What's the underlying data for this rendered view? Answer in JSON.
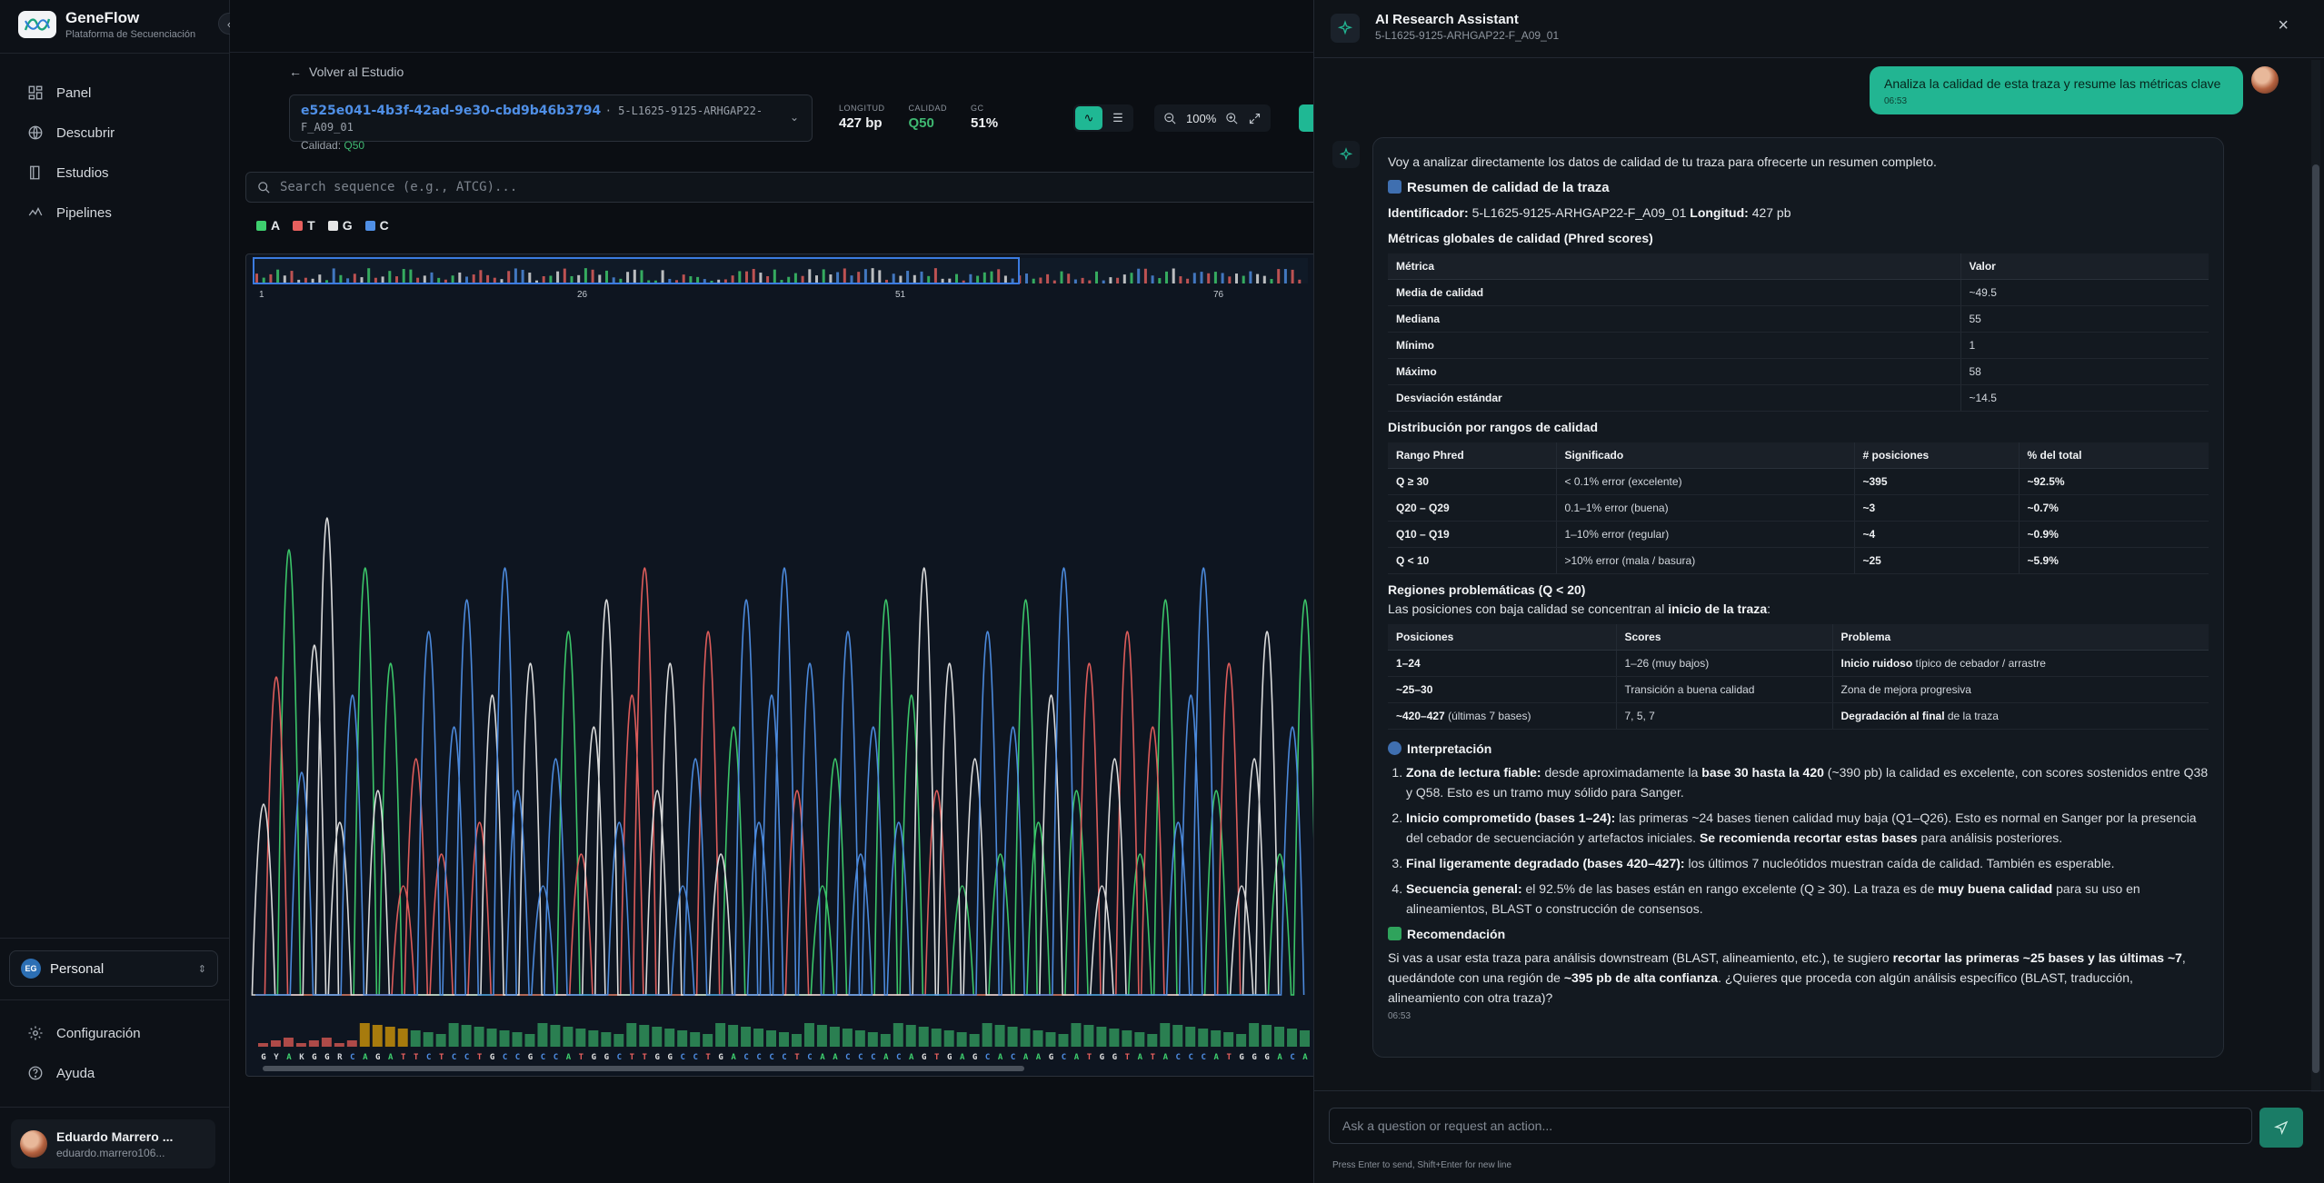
{
  "sidebar": {
    "brand_name": "GeneFlow",
    "brand_sub": "Plataforma de Secuenciación",
    "nav": [
      {
        "label": "Panel",
        "icon": "layout-icon"
      },
      {
        "label": "Descubrir",
        "icon": "globe-icon"
      },
      {
        "label": "Estudios",
        "icon": "book-icon"
      },
      {
        "label": "Pipelines",
        "icon": "activity-icon"
      }
    ],
    "workspace_badge": "EG",
    "workspace": "Personal",
    "bottom_nav": [
      {
        "label": "Configuración",
        "icon": "gear-icon"
      },
      {
        "label": "Ayuda",
        "icon": "help-icon"
      }
    ],
    "user_name": "Eduardo Marrero ...",
    "user_email": "eduardo.marrero106..."
  },
  "main": {
    "back_label": "Volver al Estudio",
    "trace_id": "e525e041-4b3f-42ad-9e30-cbd9b46b3794",
    "trace_name": "· 5-L1625-9125-ARHGAP22-F_A09_01",
    "quality_label": "Calidad:",
    "quality_value": "Q50",
    "stats": [
      {
        "label": "LONGITUD",
        "value": "427 bp"
      },
      {
        "label": "CALIDAD",
        "value": "Q50"
      },
      {
        "label": "GC",
        "value": "51%"
      }
    ],
    "zoom_level": "100%",
    "search_placeholder": "Search sequence (e.g., ATCG)...",
    "legend": [
      {
        "base": "A",
        "color": "#3ecf6e"
      },
      {
        "base": "T",
        "color": "#e8605e"
      },
      {
        "base": "G",
        "color": "#e6e6e6"
      },
      {
        "base": "C",
        "color": "#4f8fe6"
      }
    ],
    "overview_ticks": [
      "1",
      "26",
      "51",
      "76"
    ],
    "sequence": "GYAKGGRCAGATTCTCCTGCCGCCATGGCTTGGCCTGACCCCTCAACCCACAGTGAGCACAAGCATGGTATACCCATGGGACA"
  },
  "assistant": {
    "title": "AI Research Assistant",
    "subtitle": "5-L1625-9125-ARHGAP22-F_A09_01",
    "user_message": "Analiza la calidad de esta traza y resume las métricas clave",
    "user_time": "06:53",
    "intro": "Voy a analizar directamente los datos de calidad de tu traza para ofrecerte un resumen completo.",
    "summary_title": "Resumen de calidad de la traza",
    "id_label": "Identificador:",
    "id_value": "5-L1625-9125-ARHGAP22-F_A09_01",
    "len_label": "Longitud:",
    "len_value": "427 pb",
    "metrics_title": "Métricas globales de calidad (Phred scores)",
    "metrics_headers": [
      "Métrica",
      "Valor"
    ],
    "metrics_rows": [
      [
        "Media de calidad",
        "~49.5"
      ],
      [
        "Mediana",
        "55"
      ],
      [
        "Mínimo",
        "1"
      ],
      [
        "Máximo",
        "58"
      ],
      [
        "Desviación estándar",
        "~14.5"
      ]
    ],
    "dist_title": "Distribución por rangos de calidad",
    "dist_headers": [
      "Rango Phred",
      "Significado",
      "# posiciones",
      "% del total"
    ],
    "dist_rows": [
      [
        "Q ≥ 30",
        "< 0.1% error (excelente)",
        "~395",
        "~92.5%"
      ],
      [
        "Q20 – Q29",
        "0.1–1% error (buena)",
        "~3",
        "~0.7%"
      ],
      [
        "Q10 – Q19",
        "1–10% error (regular)",
        "~4",
        "~0.9%"
      ],
      [
        "Q < 10",
        ">10% error (mala / basura)",
        "~25",
        "~5.9%"
      ]
    ],
    "regions_title": "Regiones problemáticas (Q < 20)",
    "regions_intro_a": "Las posiciones con baja calidad se concentran al",
    "regions_intro_b": "inicio de la traza",
    "regions_intro_c": ":",
    "regions_headers": [
      "Posiciones",
      "Scores",
      "Problema"
    ],
    "regions_rows": [
      {
        "pos": "1–24",
        "pos_note": "",
        "scores": "1–26 (muy bajos)",
        "prob_b": "Inicio ruidoso",
        "prob": " típico de cebador / arrastre"
      },
      {
        "pos": "~25–30",
        "pos_note": "",
        "scores": "Transición a buena calidad",
        "prob_b": "",
        "prob": "Zona de mejora progresiva"
      },
      {
        "pos": "~420–427",
        "pos_note": " (últimas 7 bases)",
        "scores": "7, 5, 7",
        "prob_b": "Degradación al final",
        "prob": " de la traza"
      }
    ],
    "interp_title": "Interpretación",
    "interp": [
      {
        "a_b": "Zona de lectura fiable:",
        "b": " desde aproximadamente la ",
        "c_b": "base 30 hasta la 420",
        "d": " (~390 pb) la calidad es excelente, con scores sostenidos entre Q38 y Q58. Esto es un tramo muy sólido para Sanger.",
        "e_b": "",
        "f": ""
      },
      {
        "a_b": "Inicio comprometido (bases 1–24):",
        "b": " las primeras ~24 bases tienen calidad muy baja (Q1–Q26). Esto es normal en Sanger por la presencia del cebador de secuenciación y artefactos iniciales. ",
        "c_b": "Se recomienda recortar estas bases",
        "d": " para análisis posteriores.",
        "e_b": "",
        "f": ""
      },
      {
        "a_b": "Final ligeramente degradado (bases 420–427):",
        "b": " los últimos 7 nucleótidos muestran caída de calidad. También es esperable.",
        "c_b": "",
        "d": "",
        "e_b": "",
        "f": ""
      },
      {
        "a_b": "Secuencia general:",
        "b": " el 92.5% de las bases están en rango excelente (Q ≥ 30). La traza es de ",
        "c_b": "muy buena calidad",
        "d": " para su uso en alineamientos, BLAST o construcción de consensos.",
        "e_b": "",
        "f": ""
      }
    ],
    "rec_title": "Recomendación",
    "rec_a": "Si vas a usar esta traza para análisis downstream (BLAST, alineamiento, etc.), te sugiero ",
    "rec_b": "recortar las primeras ~25 bases y las últimas ~7",
    "rec_c": ", quedándote con una región de ",
    "rec_d": "~395 pb de alta confianza",
    "rec_e": ". ¿Quieres que proceda con algún análisis específico (BLAST, traducción, alineamiento con otra traza)?",
    "bot_time": "06:53",
    "composer_placeholder": "Ask a question or request an action...",
    "hint": "Press Enter to send, Shift+Enter for new line"
  },
  "colors": {
    "accent": "#1fb894",
    "A": "#3ecf6e",
    "T": "#e8605e",
    "G": "#e6e6e6",
    "C": "#4f8fe6"
  }
}
